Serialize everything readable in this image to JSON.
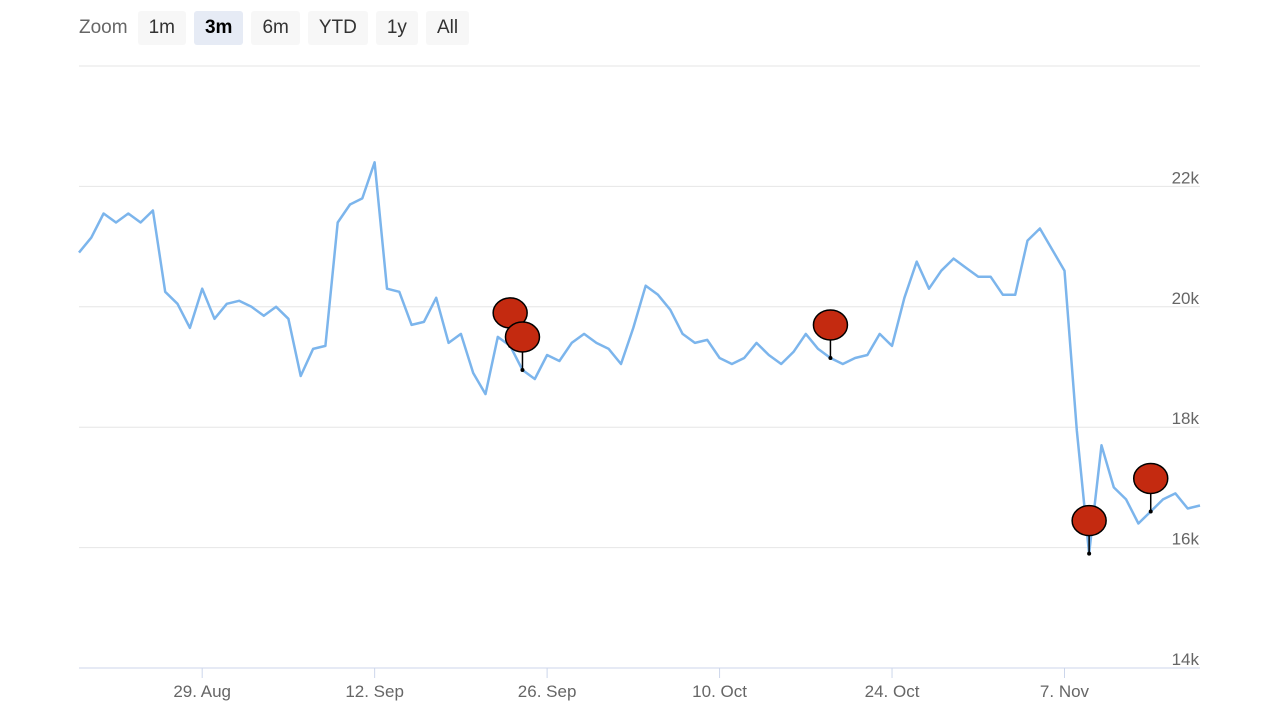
{
  "zoom": {
    "label": "Zoom",
    "buttons": [
      {
        "label": "1m",
        "active": false
      },
      {
        "label": "3m",
        "active": true
      },
      {
        "label": "6m",
        "active": false
      },
      {
        "label": "YTD",
        "active": false
      },
      {
        "label": "1y",
        "active": false
      },
      {
        "label": "All",
        "active": false
      }
    ]
  },
  "colors": {
    "line": "#7cb5ec",
    "flag_fill": "#c42a10",
    "grid": "#e6e6e6",
    "axis": "#ccd6eb"
  },
  "chart_data": {
    "type": "line",
    "ylim": [
      14000,
      24000
    ],
    "yticks": [
      14000,
      16000,
      18000,
      20000,
      22000
    ],
    "ytick_labels": [
      "14k",
      "16k",
      "18k",
      "20k",
      "22k"
    ],
    "xlim": [
      "2022-08-19",
      "2022-11-18"
    ],
    "xticks": [
      "2022-08-29",
      "2022-09-12",
      "2022-09-26",
      "2022-10-10",
      "2022-10-24",
      "2022-11-07"
    ],
    "xtick_labels": [
      "29. Aug",
      "12. Sep",
      "26. Sep",
      "10. Oct",
      "24. Oct",
      "7. Nov"
    ],
    "grid": true,
    "series": [
      {
        "x": [
          "2022-08-19",
          "2022-08-20",
          "2022-08-21",
          "2022-08-22",
          "2022-08-23",
          "2022-08-24",
          "2022-08-25",
          "2022-08-26",
          "2022-08-27",
          "2022-08-28",
          "2022-08-29",
          "2022-08-30",
          "2022-08-31",
          "2022-09-01",
          "2022-09-02",
          "2022-09-03",
          "2022-09-04",
          "2022-09-05",
          "2022-09-06",
          "2022-09-07",
          "2022-09-08",
          "2022-09-09",
          "2022-09-10",
          "2022-09-11",
          "2022-09-12",
          "2022-09-13",
          "2022-09-14",
          "2022-09-15",
          "2022-09-16",
          "2022-09-17",
          "2022-09-18",
          "2022-09-19",
          "2022-09-20",
          "2022-09-21",
          "2022-09-22",
          "2022-09-23",
          "2022-09-24",
          "2022-09-25",
          "2022-09-26",
          "2022-09-27",
          "2022-09-28",
          "2022-09-29",
          "2022-09-30",
          "2022-10-01",
          "2022-10-02",
          "2022-10-03",
          "2022-10-04",
          "2022-10-05",
          "2022-10-06",
          "2022-10-07",
          "2022-10-08",
          "2022-10-09",
          "2022-10-10",
          "2022-10-11",
          "2022-10-12",
          "2022-10-13",
          "2022-10-14",
          "2022-10-15",
          "2022-10-16",
          "2022-10-17",
          "2022-10-18",
          "2022-10-19",
          "2022-10-20",
          "2022-10-21",
          "2022-10-22",
          "2022-10-23",
          "2022-10-24",
          "2022-10-25",
          "2022-10-26",
          "2022-10-27",
          "2022-10-28",
          "2022-10-29",
          "2022-10-30",
          "2022-10-31",
          "2022-11-01",
          "2022-11-02",
          "2022-11-03",
          "2022-11-04",
          "2022-11-05",
          "2022-11-06",
          "2022-11-07",
          "2022-11-08",
          "2022-11-09",
          "2022-11-10",
          "2022-11-11",
          "2022-11-12",
          "2022-11-13",
          "2022-11-14",
          "2022-11-15",
          "2022-11-16",
          "2022-11-17",
          "2022-11-18"
        ],
        "values": [
          20900,
          21150,
          21550,
          21400,
          21550,
          21400,
          21600,
          20250,
          20050,
          19650,
          20300,
          19800,
          20050,
          20100,
          20000,
          19850,
          20000,
          19800,
          18850,
          19300,
          19350,
          21400,
          21700,
          21800,
          22400,
          20300,
          20250,
          19700,
          19750,
          20150,
          19400,
          19550,
          18900,
          18550,
          19500,
          19350,
          18950,
          18800,
          19200,
          19100,
          19400,
          19550,
          19400,
          19300,
          19050,
          19650,
          20350,
          20200,
          19950,
          19550,
          19400,
          19450,
          19150,
          19050,
          19150,
          19400,
          19200,
          19050,
          19250,
          19550,
          19300,
          19150,
          19050,
          19150,
          19200,
          19550,
          19350,
          20150,
          20750,
          20300,
          20600,
          20800,
          20650,
          20500,
          20500,
          20200,
          20200,
          21100,
          21300,
          20950,
          20600,
          17950,
          15900,
          17700,
          17000,
          16800,
          16400,
          16600,
          16800,
          16900,
          16650,
          16700
        ]
      }
    ],
    "flags": [
      {
        "x": "2022-09-23"
      },
      {
        "x": "2022-09-24"
      },
      {
        "x": "2022-10-19"
      },
      {
        "x": "2022-11-09"
      },
      {
        "x": "2022-11-14"
      }
    ]
  }
}
